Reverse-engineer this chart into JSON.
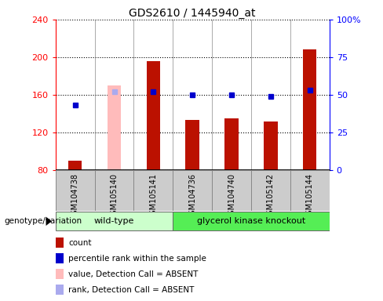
{
  "title": "GDS2610 / 1445940_at",
  "samples": [
    "GSM104738",
    "GSM105140",
    "GSM105141",
    "GSM104736",
    "GSM104740",
    "GSM105142",
    "GSM105144"
  ],
  "count_values": [
    90,
    170,
    196,
    133,
    135,
    132,
    208
  ],
  "percentile_values": [
    43,
    52,
    52,
    50,
    50,
    49,
    53
  ],
  "absent_flags": [
    false,
    true,
    false,
    false,
    false,
    false,
    false
  ],
  "ylim_left": [
    80,
    240
  ],
  "ylim_right": [
    0,
    100
  ],
  "yticks_left": [
    80,
    120,
    160,
    200,
    240
  ],
  "yticks_right": [
    0,
    25,
    50,
    75,
    100
  ],
  "ytick_labels_right": [
    "0",
    "25",
    "50",
    "75",
    "100%"
  ],
  "group1_samples": [
    0,
    1,
    2
  ],
  "group2_samples": [
    3,
    4,
    5,
    6
  ],
  "group1_label": "wild-type",
  "group2_label": "glycerol kinase knockout",
  "genotype_label": "genotype/variation",
  "bar_color_present": "#bb1100",
  "bar_color_absent": "#ffbbbb",
  "percentile_color": "#0000cc",
  "percentile_absent_color": "#aaaaee",
  "group1_bg": "#ccffcc",
  "group2_bg": "#55ee55",
  "sample_bg": "#cccccc",
  "legend_items": [
    {
      "label": "count",
      "color": "#bb1100"
    },
    {
      "label": "percentile rank within the sample",
      "color": "#0000cc"
    },
    {
      "label": "value, Detection Call = ABSENT",
      "color": "#ffbbbb"
    },
    {
      "label": "rank, Detection Call = ABSENT",
      "color": "#aaaaee"
    }
  ],
  "bar_width": 0.35,
  "percentile_marker_size": 5,
  "grid_linestyle": ":",
  "grid_color": "#000000"
}
